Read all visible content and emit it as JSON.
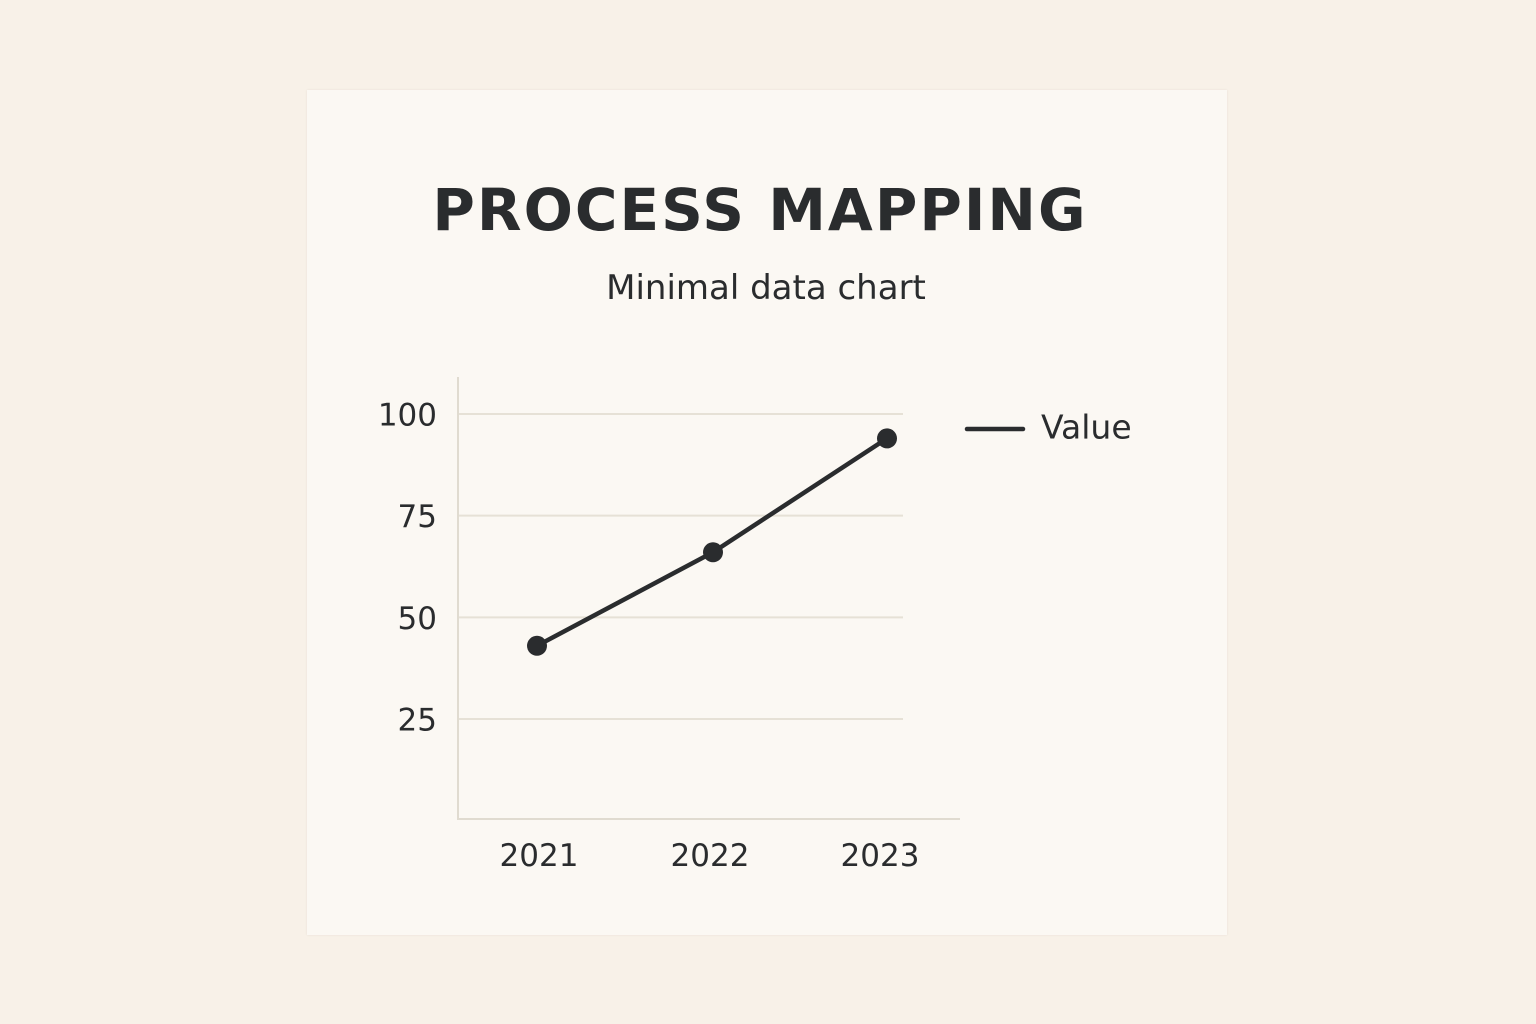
{
  "colors": {
    "background": "#f8f1e8",
    "card": "#fbf8f3",
    "ink": "#2a2c2e",
    "grid": "#e6e1d6"
  },
  "chart_data": {
    "type": "line",
    "title": "PROCESS MAPPING",
    "subtitle": "Minimal data chart",
    "x": [
      "2021",
      "2022",
      "2023"
    ],
    "series": [
      {
        "name": "Value",
        "values": [
          43,
          66,
          94
        ]
      }
    ],
    "yticks": [
      25,
      50,
      75,
      100
    ],
    "ylim": [
      0,
      108
    ],
    "grid": true,
    "legend": "right"
  }
}
